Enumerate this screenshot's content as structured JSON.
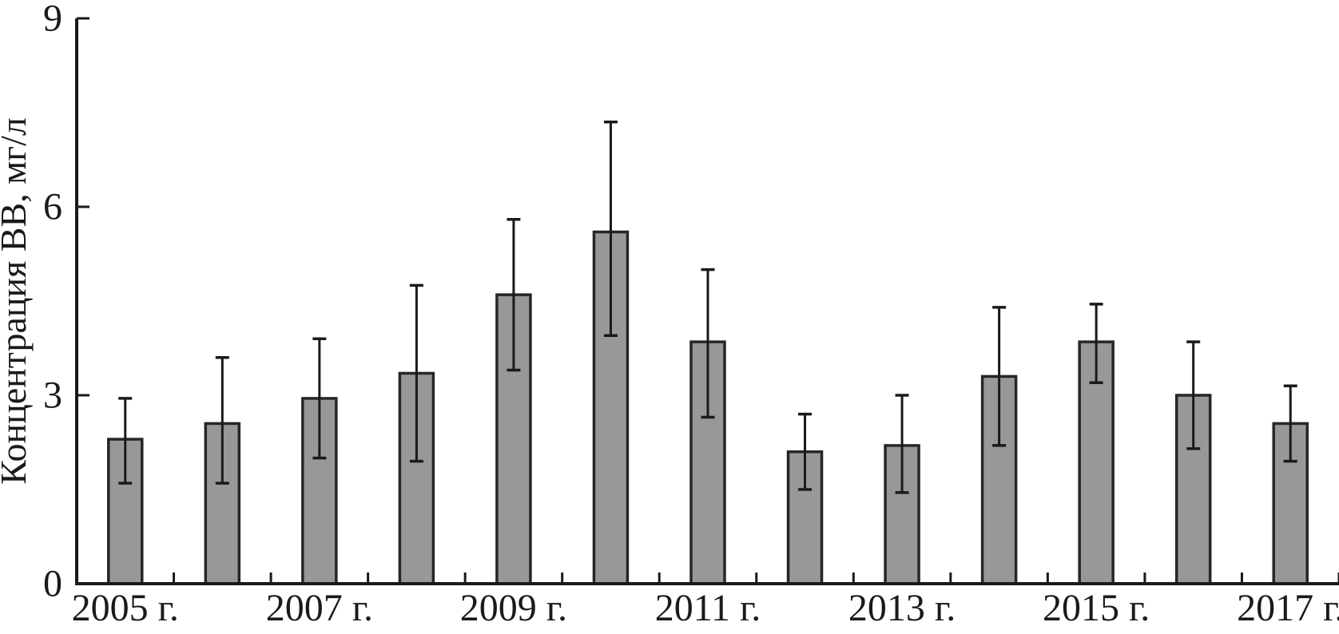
{
  "figure": {
    "background": "#ffffff",
    "description": "Bar chart of suspended solids concentration by year with error bars"
  },
  "chart_data": {
    "type": "bar",
    "title": "",
    "xlabel": "",
    "ylabel": "Концентрация ВВ, мг/л",
    "ylim": [
      0,
      9
    ],
    "yticks": [
      0,
      3,
      6,
      9
    ],
    "grid": false,
    "legend": "none",
    "categories": [
      "2005",
      "2006",
      "2007",
      "2008",
      "2009",
      "2010",
      "2011",
      "2012",
      "2013",
      "2014",
      "2015",
      "2016",
      "2017"
    ],
    "x_tick_labels_shown": [
      "2005 г.",
      "2007 г.",
      "2009 г.",
      "2011 г.",
      "2013 г.",
      "2015 г.",
      "2017 г."
    ],
    "x_label_every": 2,
    "values": [
      2.3,
      2.55,
      2.95,
      3.35,
      4.6,
      5.6,
      3.85,
      2.1,
      2.2,
      3.3,
      3.85,
      3.0,
      2.55
    ],
    "error_bar_top": [
      2.95,
      3.6,
      3.9,
      4.75,
      5.8,
      7.35,
      5.0,
      2.7,
      3.0,
      4.4,
      4.45,
      3.85,
      3.15
    ],
    "error_bar_bottom": [
      1.6,
      1.6,
      2.0,
      1.95,
      3.4,
      3.95,
      2.65,
      1.5,
      1.45,
      2.2,
      3.2,
      2.15,
      1.95
    ],
    "bar_fill": "#98989a",
    "bar_border": "#262626",
    "axis_color": "#1a1a1a"
  }
}
